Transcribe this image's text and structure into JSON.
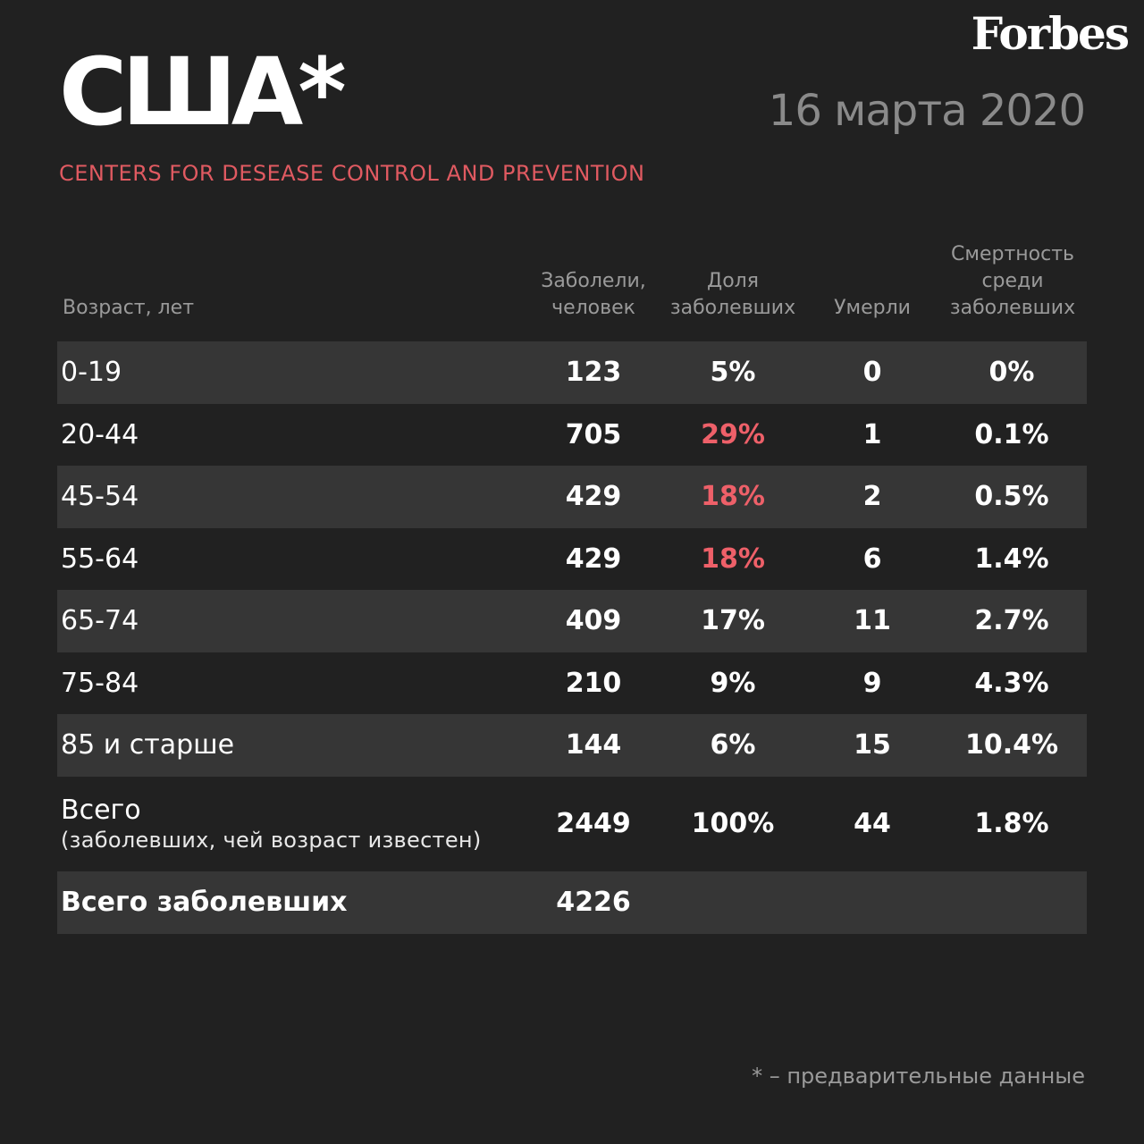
{
  "brand": "Forbes",
  "title": "США*",
  "date": "16 марта 2020",
  "source": "CENTERS FOR DESEASE CONTROL AND PREVENTION",
  "table": {
    "headers": {
      "age": "Возраст, лет",
      "cases_line1": "Заболели,",
      "cases_line2": "человек",
      "share_line1": "Доля",
      "share_line2": "заболевших",
      "deaths": "Умерли",
      "mortality_line1": "Смертность",
      "mortality_line2": "среди",
      "mortality_line3": "заболевших"
    },
    "rows": [
      {
        "age": "0-19",
        "cases": "123",
        "share": "5%",
        "deaths": "0",
        "mortality": "0%",
        "share_highlight": false
      },
      {
        "age": "20-44",
        "cases": "705",
        "share": "29%",
        "deaths": "1",
        "mortality": "0.1%",
        "share_highlight": true
      },
      {
        "age": "45-54",
        "cases": "429",
        "share": "18%",
        "deaths": "2",
        "mortality": "0.5%",
        "share_highlight": true
      },
      {
        "age": "55-64",
        "cases": "429",
        "share": "18%",
        "deaths": "6",
        "mortality": "1.4%",
        "share_highlight": true
      },
      {
        "age": "65-74",
        "cases": "409",
        "share": "17%",
        "deaths": "11",
        "mortality": "2.7%",
        "share_highlight": false
      },
      {
        "age": "75-84",
        "cases": "210",
        "share": "9%",
        "deaths": "9",
        "mortality": "4.3%",
        "share_highlight": false
      },
      {
        "age": "85 и старше",
        "cases": "144",
        "share": "6%",
        "deaths": "15",
        "mortality": "10.4%",
        "share_highlight": false
      }
    ],
    "total_known": {
      "label_line1": "Всего",
      "label_line2": "(заболевших, чей возраст известен)",
      "cases": "2449",
      "share": "100%",
      "deaths": "44",
      "mortality": "1.8%"
    },
    "grand_total": {
      "label": "Всего заболевших",
      "cases": "4226"
    }
  },
  "footnote": "* – предварительные данные",
  "colors": {
    "background": "#212121",
    "row_shade": "#363636",
    "accent_red": "#ee6069",
    "muted_text": "#9a9a9a"
  }
}
